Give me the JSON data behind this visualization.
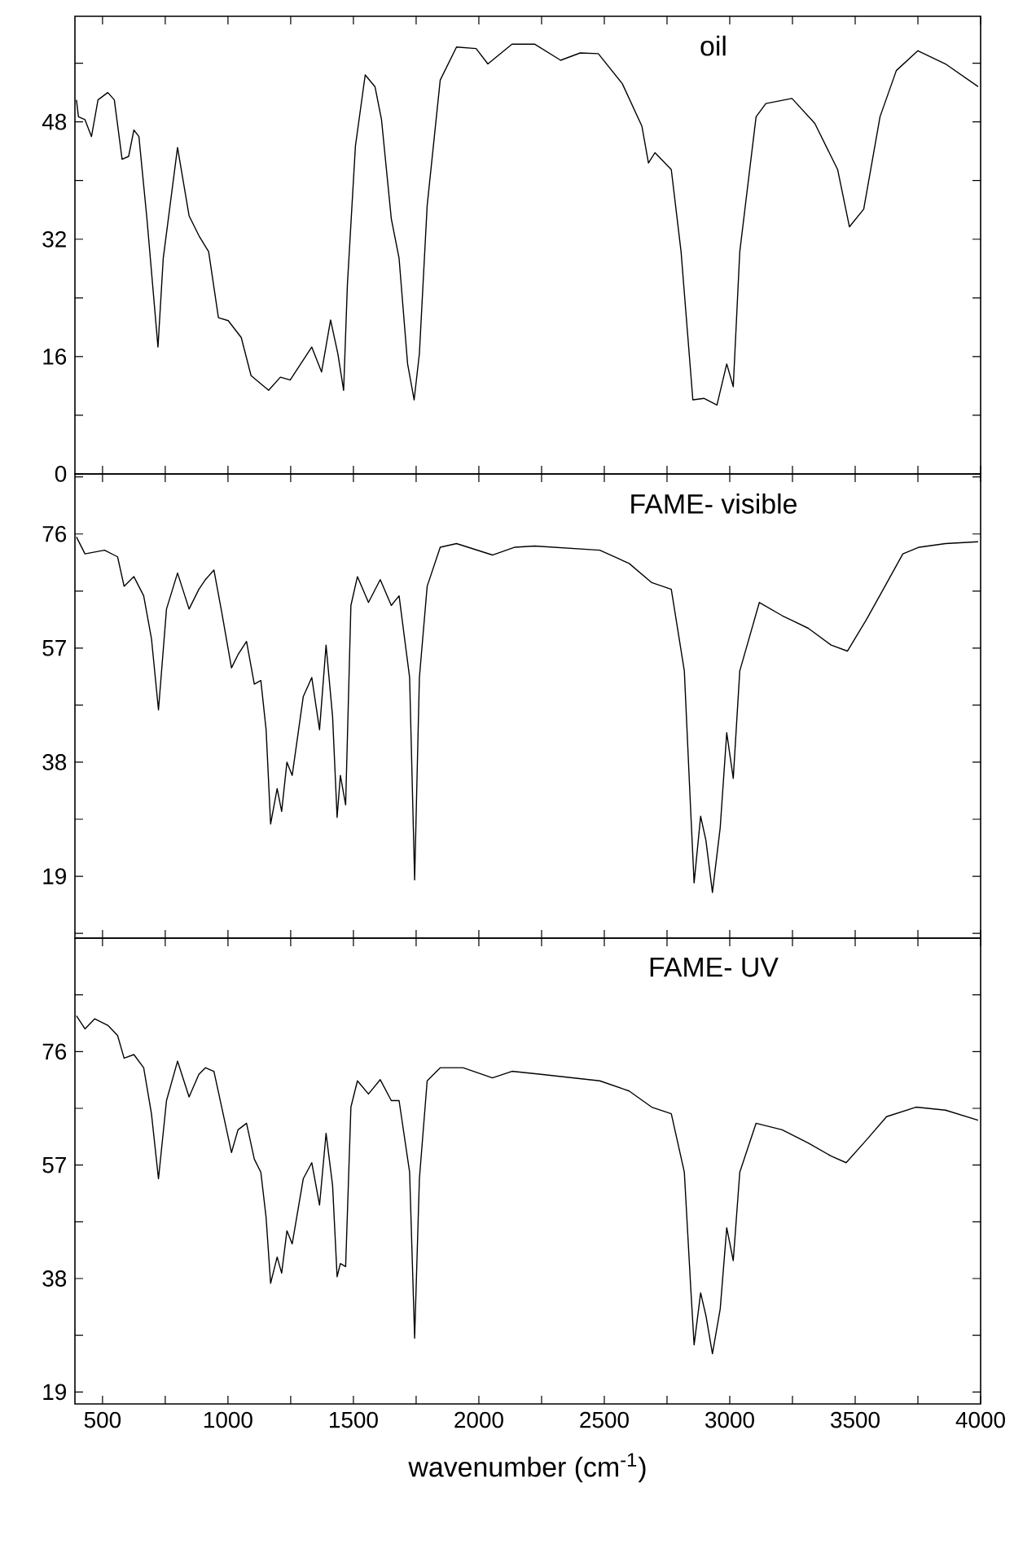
{
  "chart_data": [
    {
      "type": "line",
      "annotations": [
        "oil"
      ],
      "xlim": [
        390,
        4000
      ],
      "ylim": [
        0,
        62.4
      ],
      "tick_labels": "y",
      "xticks": [
        {
          "value": 500,
          "label": null
        },
        {
          "value": 750,
          "label": null
        },
        {
          "value": 1000,
          "label": null
        },
        {
          "value": 1250,
          "label": null
        },
        {
          "value": 1500,
          "label": null
        },
        {
          "value": 1750,
          "label": null
        },
        {
          "value": 2000,
          "label": null
        },
        {
          "value": 2250,
          "label": null
        },
        {
          "value": 2500,
          "label": null
        },
        {
          "value": 2750,
          "label": null
        },
        {
          "value": 3000,
          "label": null
        },
        {
          "value": 3250,
          "label": null
        },
        {
          "value": 3500,
          "label": null
        },
        {
          "value": 3750,
          "label": null
        },
        {
          "value": 4000,
          "label": null
        }
      ],
      "yticks": [
        0,
        {
          "value": 8,
          "label": null
        },
        16,
        {
          "value": 24,
          "label": null
        },
        32,
        {
          "value": 40,
          "label": null
        },
        48,
        {
          "value": 56,
          "label": null
        }
      ],
      "series": [
        {
          "color": "#000000",
          "x": [
            396,
            404,
            430,
            456,
            482,
            521,
            547,
            578,
            604,
            625,
            645,
            677,
            721,
            742,
            799,
            845,
            884,
            923,
            962,
            1001,
            1053,
            1092,
            1162,
            1209,
            1248,
            1334,
            1373,
            1409,
            1438,
            1461,
            1476,
            1508,
            1547,
            1586,
            1612,
            1651,
            1682,
            1716,
            1742,
            1763,
            1794,
            1846,
            1911,
            1989,
            2036,
            2132,
            2222,
            2326,
            2404,
            2476,
            2572,
            2650,
            2676,
            2702,
            2767,
            2806,
            2853,
            2897,
            2949,
            2988,
            3014,
            3040,
            3105,
            3144,
            3248,
            3339,
            3430,
            3477,
            3534,
            3599,
            3664,
            3750,
            3860,
            3990
          ],
          "values": [
            51,
            48.7,
            48.3,
            46,
            51,
            52,
            51,
            42.9,
            43.3,
            46.9,
            46,
            34.8,
            17.3,
            29.4,
            44.5,
            35.2,
            32.5,
            30.3,
            21.3,
            20.9,
            18.6,
            13.4,
            11.4,
            13.2,
            12.8,
            17.3,
            13.9,
            21,
            16.4,
            11.4,
            25.8,
            44.7,
            54.4,
            52.8,
            48.3,
            34.8,
            29.4,
            15,
            10.1,
            16.4,
            36.6,
            53.7,
            58.2,
            58,
            55.9,
            58.6,
            58.6,
            56.4,
            57.4,
            57.3,
            53.2,
            47.4,
            42.4,
            43.8,
            41.5,
            30.3,
            10.1,
            10.3,
            9.4,
            15,
            11.9,
            30.3,
            48.7,
            50.5,
            51.2,
            47.8,
            41.5,
            33.7,
            36.1,
            48.7,
            55,
            57.7,
            55.9,
            52.8
          ]
        }
      ]
    },
    {
      "type": "line",
      "annotations": [
        "FAME- visible"
      ],
      "xlim": [
        390,
        4000
      ],
      "ylim": [
        8.7,
        86
      ],
      "tick_labels": "y",
      "xticks": [
        {
          "value": 500,
          "label": null
        },
        {
          "value": 750,
          "label": null
        },
        {
          "value": 1000,
          "label": null
        },
        {
          "value": 1250,
          "label": null
        },
        {
          "value": 1500,
          "label": null
        },
        {
          "value": 1750,
          "label": null
        },
        {
          "value": 2000,
          "label": null
        },
        {
          "value": 2250,
          "label": null
        },
        {
          "value": 2500,
          "label": null
        },
        {
          "value": 2750,
          "label": null
        },
        {
          "value": 3000,
          "label": null
        },
        {
          "value": 3250,
          "label": null
        },
        {
          "value": 3500,
          "label": null
        },
        {
          "value": 3750,
          "label": null
        },
        {
          "value": 4000,
          "label": null
        }
      ],
      "yticks": [
        {
          "value": 9.5,
          "label": null
        },
        19,
        {
          "value": 28.5,
          "label": null
        },
        38,
        {
          "value": 47.5,
          "label": null
        },
        57,
        {
          "value": 66.5,
          "label": null
        },
        76,
        {
          "value": 85.5,
          "label": null
        }
      ],
      "series": [
        {
          "color": "#000000",
          "x": [
            396,
            430,
            508,
            560,
            586,
            625,
            664,
            695,
            723,
            755,
            799,
            845,
            884,
            910,
            944,
            975,
            1014,
            1040,
            1074,
            1105,
            1131,
            1152,
            1170,
            1196,
            1214,
            1235,
            1256,
            1300,
            1334,
            1365,
            1391,
            1417,
            1435,
            1448,
            1469,
            1490,
            1516,
            1560,
            1607,
            1651,
            1682,
            1724,
            1744,
            1763,
            1794,
            1846,
            1911,
            2054,
            2144,
            2222,
            2482,
            2599,
            2689,
            2767,
            2819,
            2845,
            2858,
            2884,
            2905,
            2931,
            2962,
            2988,
            3014,
            3040,
            3118,
            3209,
            3313,
            3404,
            3469,
            3547,
            3612,
            3690,
            3755,
            3860,
            3990
          ],
          "values": [
            75.5,
            72.7,
            73.3,
            72.2,
            67.3,
            68.9,
            65.7,
            58.6,
            46.7,
            63.5,
            69.5,
            63.5,
            66.8,
            68.4,
            70,
            63,
            53.7,
            55.9,
            58.1,
            51,
            51.6,
            43.4,
            27.7,
            33.6,
            29.8,
            38,
            35.8,
            48.9,
            52.1,
            43.4,
            57.5,
            45.6,
            28.8,
            35.8,
            30.9,
            64.1,
            68.9,
            64.6,
            68.4,
            64.1,
            65.7,
            52.1,
            18.4,
            52.1,
            67.3,
            73.8,
            74.4,
            72.5,
            73.8,
            74,
            73.3,
            71.1,
            67.9,
            66.8,
            53.2,
            29.3,
            17.9,
            29,
            25,
            16.3,
            27.1,
            42.9,
            35.3,
            53.2,
            64.6,
            62.4,
            60.3,
            57.5,
            56.5,
            61.9,
            66.8,
            72.7,
            73.8,
            74.4,
            74.7
          ]
        }
      ]
    },
    {
      "type": "line",
      "annotations": [
        "FAME- UV"
      ],
      "xlabel": "wavenumber (cm$^{-1}$)",
      "xlim": [
        390,
        4000
      ],
      "ylim": [
        17,
        95
      ],
      "xticks": [
        500,
        {
          "value": 750,
          "label": null
        },
        1000,
        {
          "value": 1250,
          "label": null
        },
        1500,
        {
          "value": 1750,
          "label": null
        },
        2000,
        {
          "value": 2250,
          "label": null
        },
        2500,
        {
          "value": 2750,
          "label": null
        },
        3000,
        {
          "value": 3250,
          "label": null
        },
        3500,
        {
          "value": 3750,
          "label": null
        },
        4000
      ],
      "yticks": [
        19,
        {
          "value": 28.5,
          "label": null
        },
        38,
        {
          "value": 47.5,
          "label": null
        },
        57,
        {
          "value": 66.5,
          "label": null
        },
        76,
        {
          "value": 85.5,
          "label": null
        }
      ],
      "series": [
        {
          "color": "#000000",
          "x": [
            396,
            430,
            469,
            521,
            560,
            586,
            625,
            664,
            695,
            723,
            755,
            799,
            845,
            884,
            910,
            944,
            975,
            1014,
            1040,
            1074,
            1105,
            1131,
            1152,
            1170,
            1196,
            1214,
            1235,
            1256,
            1300,
            1334,
            1365,
            1391,
            1417,
            1435,
            1448,
            1469,
            1490,
            1516,
            1560,
            1607,
            1651,
            1682,
            1724,
            1744,
            1763,
            1794,
            1846,
            1937,
            2054,
            2132,
            2248,
            2482,
            2599,
            2689,
            2767,
            2819,
            2845,
            2858,
            2884,
            2905,
            2931,
            2962,
            2988,
            3014,
            3040,
            3105,
            3209,
            3313,
            3404,
            3464,
            3547,
            3625,
            3742,
            3860,
            3990
          ],
          "values": [
            82,
            79.8,
            81.5,
            80.4,
            78.7,
            74.9,
            75.5,
            73.3,
            65.6,
            54.7,
            67.8,
            74.4,
            68.4,
            72.2,
            73.3,
            72.7,
            66.7,
            59.1,
            62.9,
            64,
            58,
            55.8,
            48.2,
            37.2,
            41.6,
            38.9,
            46,
            43.8,
            54.7,
            57.4,
            50.3,
            62.3,
            53.6,
            38.3,
            40.5,
            40,
            66.7,
            71.1,
            68.9,
            71.3,
            67.8,
            67.8,
            55.8,
            28,
            54.7,
            71.1,
            73.3,
            73.3,
            71.6,
            72.7,
            72.2,
            71.1,
            69.4,
            66.7,
            65.6,
            55.8,
            36.1,
            26.9,
            35.6,
            31.8,
            25.4,
            32.9,
            46.5,
            41,
            55.8,
            64,
            62.9,
            60.7,
            58.5,
            57.4,
            61.3,
            65.1,
            66.7,
            66.2,
            64.5
          ]
        }
      ]
    }
  ]
}
